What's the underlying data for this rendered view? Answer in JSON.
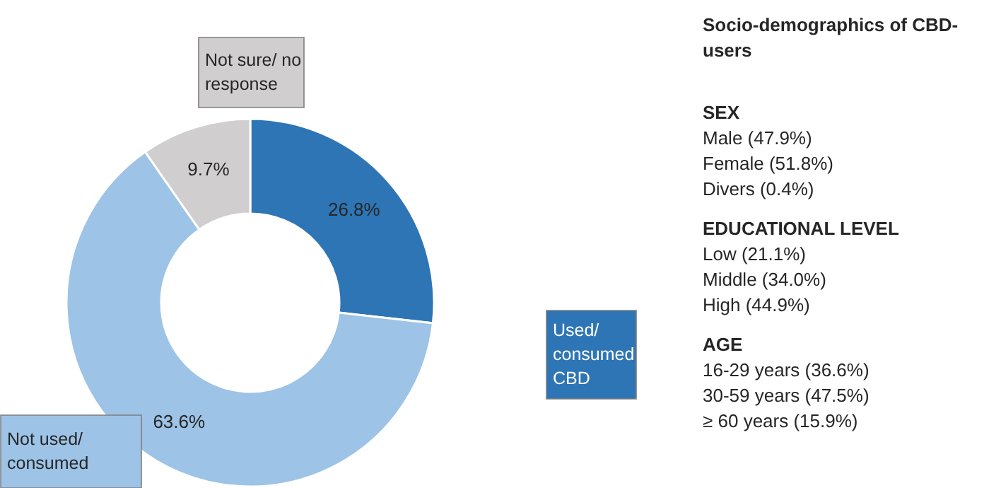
{
  "chart_data": {
    "type": "donut",
    "title": "Socio-demographics of CBD-users",
    "categories": [
      "Used/ consumed CBD",
      "Not used/ consumed",
      "Not sure/ no response"
    ],
    "values": [
      26.8,
      63.6,
      9.7
    ],
    "colors": [
      "#2e75b6",
      "#9dc3e6",
      "#d0cece"
    ],
    "value_labels": [
      "26.8%",
      "63.6%",
      "9.7%"
    ],
    "annotations": [
      "SEX",
      "Male (47.9%)",
      "Female (51.8%)",
      "Divers (0.4%)",
      "EDUCATIONAL LEVEL",
      "Low (21.1%)",
      "Middle (34.0%)",
      "High (44.9%)",
      "AGE",
      "16-29 years (36.6%)",
      "30-59 years (47.5%)",
      "≥ 60 years (15.9%)"
    ]
  }
}
